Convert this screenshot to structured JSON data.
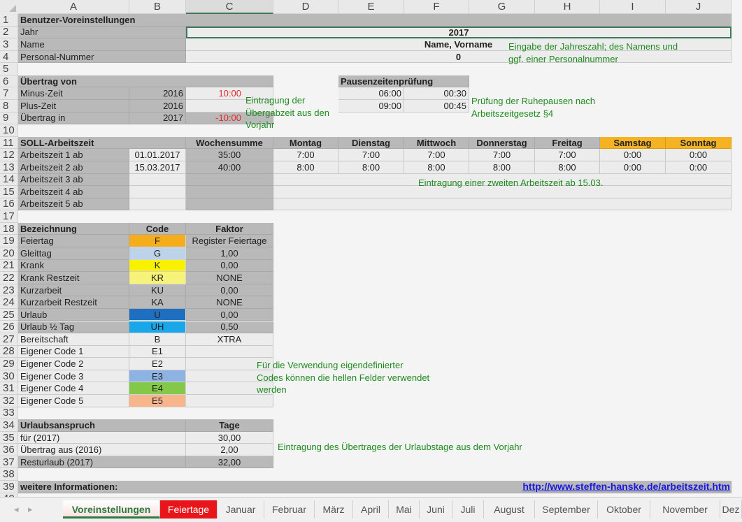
{
  "columns": [
    "A",
    "B",
    "C",
    "D",
    "E",
    "F",
    "G",
    "H",
    "I",
    "J"
  ],
  "active_column": "C",
  "row_count": 40,
  "colors": {
    "gray": "#b9b9b9",
    "light": "#ececec",
    "weekend": "#f5b324",
    "note": "#1e8a1e",
    "negative": "#e52b2b",
    "tab_feiertage": "#e8151b"
  },
  "cells": [
    [
      "A1",
      10,
      "Benutzer-Voreinstellungen",
      "g b"
    ],
    [
      "A2",
      2,
      "Jahr",
      "g"
    ],
    [
      "C2",
      8,
      "2017",
      "l b c sel"
    ],
    [
      "A3",
      2,
      "Name",
      "g"
    ],
    [
      "C3",
      8,
      "Name, Vorname",
      "l b c"
    ],
    [
      "A4",
      2,
      "Personal-Nummer",
      "g"
    ],
    [
      "C4",
      8,
      "0",
      "l b c"
    ],
    [
      "A6",
      3,
      "Übertrag von",
      "g b"
    ],
    [
      "E6",
      2,
      "Pausenzeitenprüfung",
      "g b"
    ],
    [
      "A7",
      1,
      "Minus-Zeit",
      "g"
    ],
    [
      "B7",
      1,
      "2016",
      "g r"
    ],
    [
      "C7",
      1,
      "10:00",
      "l r red"
    ],
    [
      "E7",
      1,
      "06:00",
      "l r"
    ],
    [
      "F7",
      1,
      "00:30",
      "l r"
    ],
    [
      "A8",
      1,
      "Plus-Zeit",
      "g"
    ],
    [
      "B8",
      1,
      "2016",
      "g r"
    ],
    [
      "C8",
      1,
      "",
      "l"
    ],
    [
      "E8",
      1,
      "09:00",
      "l r"
    ],
    [
      "F8",
      1,
      "00:45",
      "l r"
    ],
    [
      "A9",
      1,
      "Übertrag in",
      "g"
    ],
    [
      "B9",
      1,
      "2017",
      "g r"
    ],
    [
      "C9",
      1,
      "-10:00",
      "g r red"
    ],
    [
      "A11",
      2,
      "SOLL-Arbeitszeit",
      "g b"
    ],
    [
      "C11",
      1,
      "Wochensumme",
      "g b c"
    ],
    [
      "D11",
      1,
      "Montag",
      "g b c"
    ],
    [
      "E11",
      1,
      "Dienstag",
      "g b c"
    ],
    [
      "F11",
      1,
      "Mittwoch",
      "g b c"
    ],
    [
      "G11",
      1,
      "Donnerstag",
      "g b c"
    ],
    [
      "H11",
      1,
      "Freitag",
      "g b c"
    ],
    [
      "I11",
      1,
      "Samstag",
      "o b c"
    ],
    [
      "J11",
      1,
      "Sonntag",
      "o b c"
    ],
    [
      "A12",
      1,
      "Arbeitszeit 1 ab",
      "g"
    ],
    [
      "B12",
      1,
      "01.01.2017",
      "l c"
    ],
    [
      "C12",
      1,
      "35:00",
      "g c"
    ],
    [
      "D12",
      1,
      "7:00",
      "l c"
    ],
    [
      "E12",
      1,
      "7:00",
      "l c"
    ],
    [
      "F12",
      1,
      "7:00",
      "l c"
    ],
    [
      "G12",
      1,
      "7:00",
      "l c"
    ],
    [
      "H12",
      1,
      "7:00",
      "l c"
    ],
    [
      "I12",
      1,
      "0:00",
      "l c"
    ],
    [
      "J12",
      1,
      "0:00",
      "l c"
    ],
    [
      "A13",
      1,
      "Arbeitszeit 2 ab",
      "g"
    ],
    [
      "B13",
      1,
      "15.03.2017",
      "l c"
    ],
    [
      "C13",
      1,
      "40:00",
      "g c"
    ],
    [
      "D13",
      1,
      "8:00",
      "l c"
    ],
    [
      "E13",
      1,
      "8:00",
      "l c"
    ],
    [
      "F13",
      1,
      "8:00",
      "l c"
    ],
    [
      "G13",
      1,
      "8:00",
      "l c"
    ],
    [
      "H13",
      1,
      "8:00",
      "l c"
    ],
    [
      "I13",
      1,
      "0:00",
      "l c"
    ],
    [
      "J13",
      1,
      "0:00",
      "l c"
    ],
    [
      "A14",
      1,
      "Arbeitszeit 3 ab",
      "g"
    ],
    [
      "B14",
      1,
      "",
      "l"
    ],
    [
      "C14",
      1,
      "",
      "g"
    ],
    [
      "D14",
      7,
      "",
      "l"
    ],
    [
      "A15",
      1,
      "Arbeitszeit 4 ab",
      "g"
    ],
    [
      "B15",
      1,
      "",
      "l"
    ],
    [
      "C15",
      1,
      "",
      "g"
    ],
    [
      "D15",
      7,
      "",
      "l"
    ],
    [
      "A16",
      1,
      "Arbeitszeit 5 ab",
      "g"
    ],
    [
      "B16",
      1,
      "",
      "l"
    ],
    [
      "C16",
      1,
      "",
      "g"
    ],
    [
      "D16",
      7,
      "",
      "l"
    ],
    [
      "A18",
      1,
      "Bezeichnung",
      "g b"
    ],
    [
      "B18",
      1,
      "Code",
      "g b c"
    ],
    [
      "C18",
      1,
      "Faktor",
      "g b c"
    ],
    [
      "A19",
      1,
      "Feiertag",
      "g"
    ],
    [
      "B19",
      1,
      "F",
      "c",
      "#f5ad1c"
    ],
    [
      "C19",
      1,
      "Register Feiertage",
      "g c"
    ],
    [
      "A20",
      1,
      "Gleittag",
      "g"
    ],
    [
      "B20",
      1,
      "G",
      "c",
      "#bcd3ea"
    ],
    [
      "C20",
      1,
      "1,00",
      "g c"
    ],
    [
      "A21",
      1,
      "Krank",
      "g"
    ],
    [
      "B21",
      1,
      "K",
      "c",
      "#f8f200"
    ],
    [
      "C21",
      1,
      "0,00",
      "g c"
    ],
    [
      "A22",
      1,
      "Krank Restzeit",
      "g"
    ],
    [
      "B22",
      1,
      "KR",
      "c",
      "#f7f37a"
    ],
    [
      "C22",
      1,
      "NONE",
      "g c"
    ],
    [
      "A23",
      1,
      "Kurzarbeit",
      "g"
    ],
    [
      "B23",
      1,
      "KU",
      "g c"
    ],
    [
      "C23",
      1,
      "0,00",
      "g c"
    ],
    [
      "A24",
      1,
      "Kurzarbeit Restzeit",
      "g"
    ],
    [
      "B24",
      1,
      "KA",
      "g c"
    ],
    [
      "C24",
      1,
      "NONE",
      "g c"
    ],
    [
      "A25",
      1,
      "Urlaub",
      "g"
    ],
    [
      "B25",
      1,
      "U",
      "c",
      "#1f6fc0"
    ],
    [
      "C25",
      1,
      "0,00",
      "g c"
    ],
    [
      "A26",
      1,
      "Urlaub ½ Tag",
      "g"
    ],
    [
      "B26",
      1,
      "UH",
      "c",
      "#19a7ea"
    ],
    [
      "C26",
      1,
      "0,50",
      "g c"
    ],
    [
      "A27",
      1,
      "Bereitschaft",
      "l"
    ],
    [
      "B27",
      1,
      "B",
      "l c"
    ],
    [
      "C27",
      1,
      "XTRA",
      "l c"
    ],
    [
      "A28",
      1,
      "Eigener Code 1",
      "l"
    ],
    [
      "B28",
      1,
      "E1",
      "l c"
    ],
    [
      "C28",
      1,
      "",
      "l"
    ],
    [
      "A29",
      1,
      "Eigener Code 2",
      "l"
    ],
    [
      "B29",
      1,
      "E2",
      "l c"
    ],
    [
      "C29",
      1,
      "",
      "l"
    ],
    [
      "A30",
      1,
      "Eigener Code 3",
      "l"
    ],
    [
      "B30",
      1,
      "E3",
      "c",
      "#8db3e2"
    ],
    [
      "C30",
      1,
      "",
      "l"
    ],
    [
      "A31",
      1,
      "Eigener Code 4",
      "l"
    ],
    [
      "B31",
      1,
      "E4",
      "c",
      "#84c84a"
    ],
    [
      "C31",
      1,
      "",
      "l"
    ],
    [
      "A32",
      1,
      "Eigener Code 5",
      "l"
    ],
    [
      "B32",
      1,
      "E5",
      "c",
      "#f6b58a"
    ],
    [
      "C32",
      1,
      "",
      "l"
    ],
    [
      "A34",
      2,
      "Urlaubsanspruch",
      "g b"
    ],
    [
      "C34",
      1,
      "Tage",
      "g b c"
    ],
    [
      "A35",
      2,
      "für (2017)",
      "l"
    ],
    [
      "C35",
      1,
      "30,00",
      "l c"
    ],
    [
      "A36",
      2,
      "Übertrag aus (2016)",
      "l"
    ],
    [
      "C36",
      1,
      "2,00",
      "l c"
    ],
    [
      "A37",
      2,
      "Resturlaub (2017)",
      "g"
    ],
    [
      "C37",
      1,
      "32,00",
      "g c"
    ],
    [
      "A39",
      10,
      "weitere Informationen:",
      "g b"
    ]
  ],
  "notes": {
    "jahr": [
      "Eingabe der Jahreszahl; des Namens und",
      "ggf. einer Personalnummer"
    ],
    "uebertrag": [
      "Eintragung der",
      "Übergabzeit aus den",
      "Vorjahr"
    ],
    "pausen": [
      "Prüfung der Ruhepausen nach",
      "Arbeitszeitgesetz §4"
    ],
    "arbeitszeit": [
      "Eintragung einer zweiten Arbeitszeit ab 15.03."
    ],
    "codes": [
      "Für die Verwendung eigendefinierter",
      "Codes können die hellen Felder verwendet",
      "werden"
    ],
    "urlaub": [
      "Eintragung des Übertrages der Urlaubstage aus dem Vorjahr"
    ]
  },
  "link": "http://www.steffen-hanske.de/arbeitszeit.htm",
  "tabs": {
    "active": "Voreinstellungen",
    "items": [
      "Voreinstellungen",
      "Feiertage",
      "Januar",
      "Februar",
      "März",
      "April",
      "Mai",
      "Juni",
      "Juli",
      "August",
      "September",
      "Oktober",
      "November",
      "Dez"
    ]
  }
}
